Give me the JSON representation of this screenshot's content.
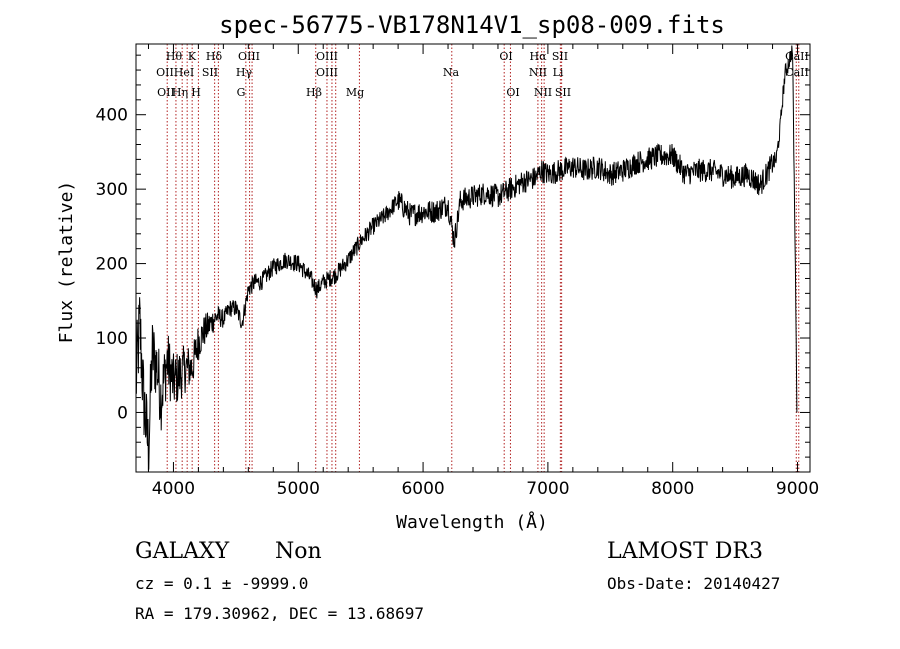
{
  "chart_data": {
    "type": "line",
    "title": "spec-56775-VB178N14V1_sp08-009.fits",
    "xlabel": "Wavelength (Å)",
    "ylabel": "Flux (relative)",
    "xlim": [
      3700,
      9100
    ],
    "ylim": [
      -80,
      495
    ],
    "xticks": [
      4000,
      5000,
      6000,
      7000,
      8000,
      9000
    ],
    "yticks": [
      0,
      100,
      200,
      300,
      400
    ],
    "xtick_labels": [
      "4000",
      "5000",
      "6000",
      "7000",
      "8000",
      "9000"
    ],
    "ytick_labels": [
      "0",
      "100",
      "200",
      "300",
      "400"
    ],
    "series": [
      {
        "name": "flux",
        "anchors": [
          [
            3700,
            40
          ],
          [
            3730,
            120
          ],
          [
            3760,
            20
          ],
          [
            3800,
            -50
          ],
          [
            3830,
            80
          ],
          [
            3870,
            60
          ],
          [
            3900,
            20
          ],
          [
            3950,
            70
          ],
          [
            4000,
            40
          ],
          [
            4050,
            50
          ],
          [
            4100,
            60
          ],
          [
            4150,
            60
          ],
          [
            4200,
            95
          ],
          [
            4250,
            110
          ],
          [
            4300,
            120
          ],
          [
            4350,
            130
          ],
          [
            4400,
            125
          ],
          [
            4450,
            140
          ],
          [
            4500,
            140
          ],
          [
            4550,
            120
          ],
          [
            4600,
            165
          ],
          [
            4650,
            175
          ],
          [
            4700,
            175
          ],
          [
            4800,
            195
          ],
          [
            4900,
            205
          ],
          [
            5000,
            200
          ],
          [
            5100,
            180
          ],
          [
            5150,
            165
          ],
          [
            5200,
            175
          ],
          [
            5300,
            185
          ],
          [
            5400,
            205
          ],
          [
            5500,
            230
          ],
          [
            5600,
            250
          ],
          [
            5700,
            265
          ],
          [
            5800,
            285
          ],
          [
            5900,
            265
          ],
          [
            6000,
            270
          ],
          [
            6100,
            270
          ],
          [
            6200,
            280
          ],
          [
            6250,
            230
          ],
          [
            6300,
            285
          ],
          [
            6400,
            290
          ],
          [
            6500,
            295
          ],
          [
            6600,
            290
          ],
          [
            6700,
            300
          ],
          [
            6800,
            310
          ],
          [
            6900,
            315
          ],
          [
            6950,
            325
          ],
          [
            7000,
            320
          ],
          [
            7100,
            325
          ],
          [
            7200,
            330
          ],
          [
            7300,
            325
          ],
          [
            7400,
            330
          ],
          [
            7500,
            320
          ],
          [
            7600,
            325
          ],
          [
            7700,
            335
          ],
          [
            7800,
            340
          ],
          [
            7900,
            345
          ],
          [
            8000,
            345
          ],
          [
            8100,
            320
          ],
          [
            8200,
            325
          ],
          [
            8300,
            325
          ],
          [
            8400,
            320
          ],
          [
            8500,
            315
          ],
          [
            8600,
            320
          ],
          [
            8700,
            305
          ],
          [
            8800,
            335
          ],
          [
            8830,
            340
          ],
          [
            8860,
            380
          ],
          [
            8880,
            420
          ],
          [
            8900,
            455
          ],
          [
            8930,
            470
          ],
          [
            8960,
            490
          ],
          [
            8990,
            100
          ]
        ],
        "noise_amplitude": {
          "blue_end": 60,
          "red_end": 12
        }
      }
    ],
    "spectral_lines": {
      "row1": [
        {
          "label": "Hθ",
          "wavelength": 3797
        },
        {
          "label": "K",
          "wavelength": 3933
        },
        {
          "label": "Hδ",
          "wavelength": 4102
        },
        {
          "label": "OIII",
          "wavelength": 4363
        },
        {
          "label": "OIII",
          "wavelength": 4959
        },
        {
          "label": "OI",
          "wavelength": 6300
        },
        {
          "label": "Hα",
          "wavelength": 6563
        },
        {
          "label": "SII",
          "wavelength": 6716
        },
        {
          "label": "CaII",
          "wavelength": 8542
        }
      ],
      "row2": [
        {
          "label": "OII",
          "wavelength": 3727
        },
        {
          "label": "HeI",
          "wavelength": 3889
        },
        {
          "label": "SII",
          "wavelength": 4069
        },
        {
          "label": "Hγ",
          "wavelength": 4340
        },
        {
          "label": "OIII",
          "wavelength": 5007
        },
        {
          "label": "Na",
          "wavelength": 5893
        },
        {
          "label": "NII",
          "wavelength": 6548
        },
        {
          "label": "Li",
          "wavelength": 6708
        },
        {
          "label": "CaII",
          "wavelength": 8498
        }
      ],
      "row3": [
        {
          "label": "OII",
          "wavelength": 3729
        },
        {
          "label": "Hη",
          "wavelength": 3835
        },
        {
          "label": "H",
          "wavelength": 3968
        },
        {
          "label": "G",
          "wavelength": 4304
        },
        {
          "label": "Hβ",
          "wavelength": 4861
        },
        {
          "label": "Mg",
          "wavelength": 5175
        },
        {
          "label": "OI",
          "wavelength": 6364
        },
        {
          "label": "NII",
          "wavelength": 6583
        },
        {
          "label": "SII",
          "wavelength": 6731
        }
      ],
      "line_positions_observed": [
        3950,
        4020,
        4070,
        4110,
        4150,
        4200,
        4330,
        4360,
        4580,
        4610,
        4630,
        5140,
        5230,
        5270,
        5300,
        5490,
        6230,
        6650,
        6700,
        6920,
        6950,
        6970,
        7100,
        7110,
        8990,
        9010
      ]
    }
  },
  "info": {
    "object_class": "GALAXY",
    "subclass": "Non",
    "cz_line": "cz = 0.1 ± -9999.0",
    "coords_line": "RA = 179.30962, DEC =  13.68697",
    "survey": "LAMOST DR3",
    "obs_date": "Obs-Date: 20140427"
  },
  "colors": {
    "spectrum": "#000000",
    "line_marker": "#b22222",
    "axis": "#000000"
  }
}
